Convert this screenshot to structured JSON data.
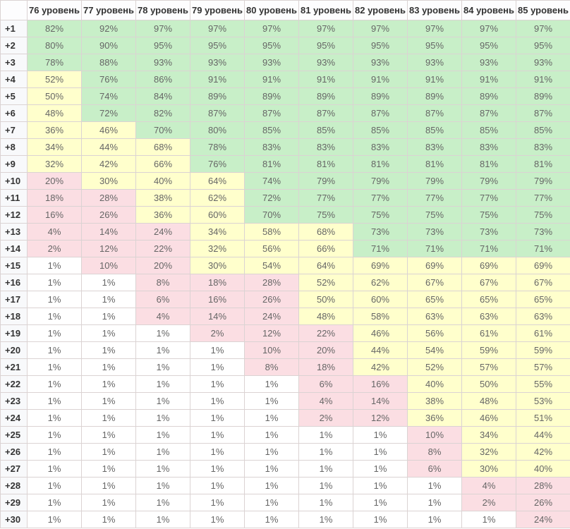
{
  "table": {
    "corner_label": "",
    "value_suffix": "%",
    "label_col_width": 38,
    "data_col_width": 77,
    "colors": {
      "high": "#c8efc8",
      "mid": "#ffffcc",
      "low": "#fbdee3",
      "none": "#ffffff",
      "border": "#dbd3d3",
      "header_bg": "#fdfdfe",
      "label_bg": "#f8f9fb",
      "value_text": "#666666",
      "label_text": "#333333"
    },
    "thresholds": {
      "green_min": 70,
      "yellow_min": 30,
      "pink_min": 2
    }
  },
  "chart_data": {
    "type": "table",
    "title": "",
    "value_suffix": "%",
    "columns": [
      "76 уровень",
      "77 уровень",
      "78 уровень",
      "79 уровень",
      "80 уровень",
      "81 уровень",
      "82 уровень",
      "83 уровень",
      "84 уровень",
      "85 уровень"
    ],
    "row_labels": [
      "+1",
      "+2",
      "+3",
      "+4",
      "+5",
      "+6",
      "+7",
      "+8",
      "+9",
      "+10",
      "+11",
      "+12",
      "+13",
      "+14",
      "+15",
      "+16",
      "+17",
      "+18",
      "+19",
      "+20",
      "+21",
      "+22",
      "+23",
      "+24",
      "+25",
      "+26",
      "+27",
      "+28",
      "+29",
      "+30"
    ],
    "values_percent": [
      [
        82,
        92,
        97,
        97,
        97,
        97,
        97,
        97,
        97,
        97
      ],
      [
        80,
        90,
        95,
        95,
        95,
        95,
        95,
        95,
        95,
        95
      ],
      [
        78,
        88,
        93,
        93,
        93,
        93,
        93,
        93,
        93,
        93
      ],
      [
        52,
        76,
        86,
        91,
        91,
        91,
        91,
        91,
        91,
        91
      ],
      [
        50,
        74,
        84,
        89,
        89,
        89,
        89,
        89,
        89,
        89
      ],
      [
        48,
        72,
        82,
        87,
        87,
        87,
        87,
        87,
        87,
        87
      ],
      [
        36,
        46,
        70,
        80,
        85,
        85,
        85,
        85,
        85,
        85
      ],
      [
        34,
        44,
        68,
        78,
        83,
        83,
        83,
        83,
        83,
        83
      ],
      [
        32,
        42,
        66,
        76,
        81,
        81,
        81,
        81,
        81,
        81
      ],
      [
        20,
        30,
        40,
        64,
        74,
        79,
        79,
        79,
        79,
        79
      ],
      [
        18,
        28,
        38,
        62,
        72,
        77,
        77,
        77,
        77,
        77
      ],
      [
        16,
        26,
        36,
        60,
        70,
        75,
        75,
        75,
        75,
        75
      ],
      [
        4,
        14,
        24,
        34,
        58,
        68,
        73,
        73,
        73,
        73
      ],
      [
        2,
        12,
        22,
        32,
        56,
        66,
        71,
        71,
        71,
        71
      ],
      [
        1,
        10,
        20,
        30,
        54,
        64,
        69,
        69,
        69,
        69
      ],
      [
        1,
        1,
        8,
        18,
        28,
        52,
        62,
        67,
        67,
        67
      ],
      [
        1,
        1,
        6,
        16,
        26,
        50,
        60,
        65,
        65,
        65
      ],
      [
        1,
        1,
        4,
        14,
        24,
        48,
        58,
        63,
        63,
        63
      ],
      [
        1,
        1,
        1,
        2,
        12,
        22,
        46,
        56,
        61,
        61
      ],
      [
        1,
        1,
        1,
        1,
        10,
        20,
        44,
        54,
        59,
        59
      ],
      [
        1,
        1,
        1,
        1,
        8,
        18,
        42,
        52,
        57,
        57
      ],
      [
        1,
        1,
        1,
        1,
        1,
        6,
        16,
        40,
        50,
        55
      ],
      [
        1,
        1,
        1,
        1,
        1,
        4,
        14,
        38,
        48,
        53
      ],
      [
        1,
        1,
        1,
        1,
        1,
        2,
        12,
        36,
        46,
        51
      ],
      [
        1,
        1,
        1,
        1,
        1,
        1,
        1,
        10,
        34,
        44
      ],
      [
        1,
        1,
        1,
        1,
        1,
        1,
        1,
        8,
        32,
        42
      ],
      [
        1,
        1,
        1,
        1,
        1,
        1,
        1,
        6,
        30,
        40
      ],
      [
        1,
        1,
        1,
        1,
        1,
        1,
        1,
        1,
        4,
        28
      ],
      [
        1,
        1,
        1,
        1,
        1,
        1,
        1,
        1,
        2,
        26
      ],
      [
        1,
        1,
        1,
        1,
        1,
        1,
        1,
        1,
        1,
        24
      ]
    ]
  }
}
